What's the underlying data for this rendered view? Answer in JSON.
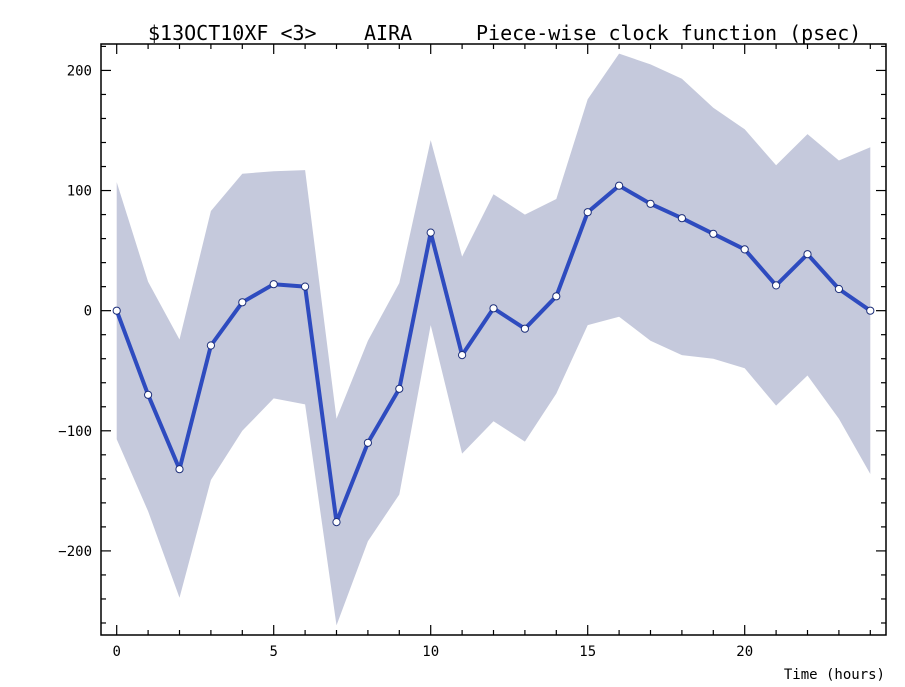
{
  "chart_data": {
    "type": "line",
    "title_parts": [
      "$13OCT10XF <3>",
      "AIRA",
      "Piece-wise clock function (psec)"
    ],
    "xlabel": "Time (hours)",
    "ylabel": "",
    "xlim": [
      -0.5,
      24.5
    ],
    "ylim": [
      -270,
      222
    ],
    "x_ticks": [
      0,
      5,
      10,
      15,
      20
    ],
    "y_ticks": [
      -200,
      -100,
      0,
      100,
      200
    ],
    "x_tick_labels": [
      "0",
      "5",
      "10",
      "15",
      "20"
    ],
    "y_tick_labels": [
      "−200",
      "−100",
      "0",
      "100",
      "200"
    ],
    "grid": false,
    "legend": "none",
    "colors": {
      "line": "#2e4bbf",
      "band": "#c5c9dc",
      "marker_fill": "#ffffff"
    },
    "series": [
      {
        "x": [
          0,
          1,
          2,
          3,
          4,
          5,
          6,
          7,
          8,
          9,
          10,
          11,
          12,
          13,
          14,
          15,
          16,
          17,
          18,
          19,
          20,
          21,
          22,
          23,
          24
        ],
        "values": [
          0,
          -70,
          -132,
          -29,
          7,
          22,
          20,
          -176,
          -110,
          -65,
          65,
          -37,
          2,
          -15,
          12,
          82,
          104,
          89,
          77,
          64,
          51,
          21,
          47,
          18,
          0
        ],
        "upper": [
          107,
          24,
          -24,
          83,
          114,
          116,
          117,
          -90,
          -25,
          23,
          142,
          45,
          97,
          80,
          93,
          176,
          214,
          205,
          193,
          169,
          151,
          121,
          147,
          125,
          136
        ],
        "lower": [
          -107,
          -167,
          -239,
          -141,
          -100,
          -73,
          -78,
          -262,
          -192,
          -153,
          -12,
          -119,
          -92,
          -109,
          -69,
          -12,
          -5,
          -25,
          -37,
          -40,
          -48,
          -79,
          -54,
          -90,
          -136
        ]
      }
    ]
  }
}
